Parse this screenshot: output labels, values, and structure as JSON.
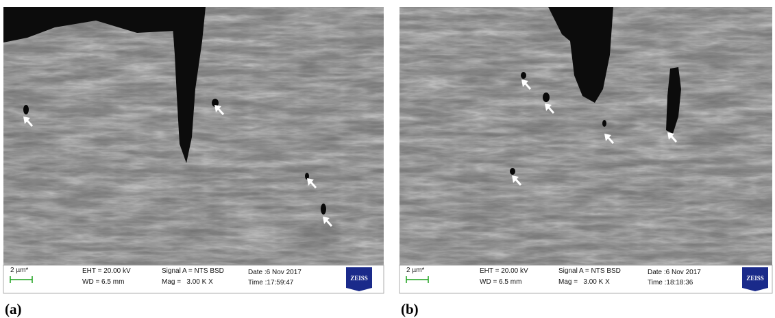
{
  "panels": [
    {
      "label": "(a)",
      "info": {
        "scale": "2 µm*",
        "eht": "EHT = 20.00 kV",
        "wd": "WD = 6.5 mm",
        "signal": "Signal A = NTS BSD",
        "mag": "Mag =   3.00 K X",
        "date": "Date :6 Nov 2017",
        "time": "Time :17:59:47",
        "logo": "ZEISS"
      }
    },
    {
      "label": "(b)",
      "info": {
        "scale": "2 µm*",
        "eht": "EHT = 20.00 kV",
        "wd": "WD = 6.5 mm",
        "signal": "Signal A = NTS BSD",
        "mag": "Mag =   3.00 K X",
        "date": "Date :6 Nov 2017",
        "time": "Time :18:18:36",
        "logo": "ZEISS"
      }
    }
  ]
}
